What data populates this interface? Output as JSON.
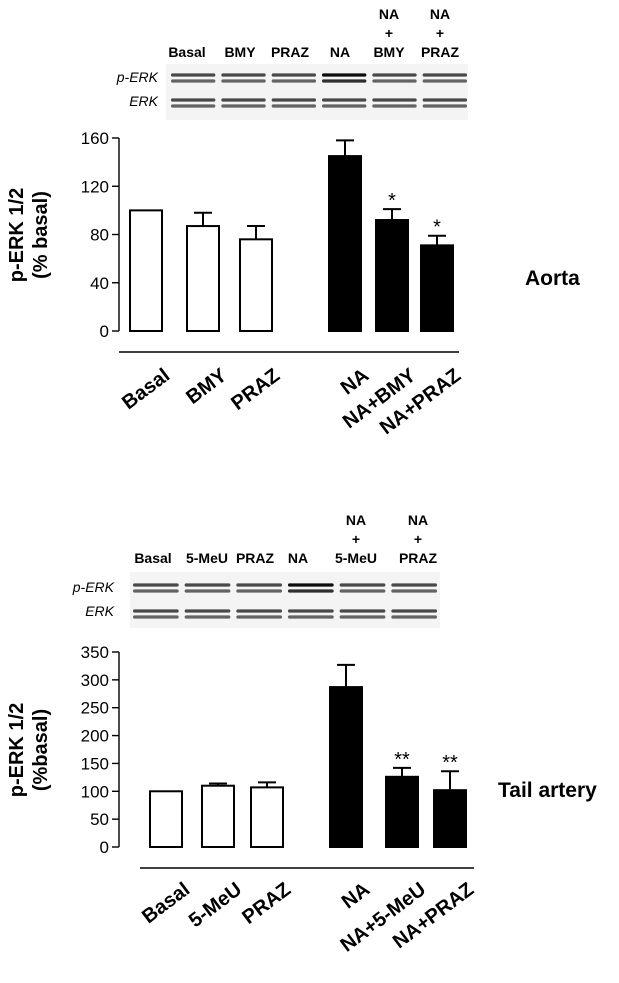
{
  "chart_data": [
    {
      "type": "bar",
      "panel_label": "Aorta",
      "blot": {
        "lanes": [
          "Basal",
          "BMY",
          "PRAZ",
          "NA",
          [
            "NA",
            "+",
            "BMY"
          ],
          [
            "NA",
            "+",
            "PRAZ"
          ]
        ],
        "rows": [
          "p-ERK",
          "ERK"
        ]
      },
      "categories": [
        "Basal",
        "BMY",
        "PRAZ",
        "NA",
        "NA+BMY",
        "NA+PRAZ"
      ],
      "values": [
        100,
        87,
        76,
        145,
        92,
        71
      ],
      "errors": [
        0,
        11,
        11,
        13,
        9,
        8
      ],
      "fills": [
        "white",
        "white",
        "white",
        "black",
        "black",
        "black"
      ],
      "significance": [
        "",
        "",
        "",
        "",
        "*",
        "*"
      ],
      "ylabel": [
        "p-ERK 1/2",
        "(% basal)"
      ],
      "ylim": [
        0,
        160
      ],
      "yticks": [
        0,
        40,
        80,
        120,
        160
      ],
      "grid": false
    },
    {
      "type": "bar",
      "panel_label": "Tail artery",
      "blot": {
        "lanes": [
          "Basal",
          "5-MeU",
          "PRAZ",
          "NA",
          [
            "NA",
            "+",
            "5-MeU"
          ],
          [
            "NA",
            "+",
            "PRAZ"
          ]
        ],
        "rows": [
          "p-ERK",
          "ERK"
        ]
      },
      "categories": [
        "Basal",
        "5-MeU",
        "PRAZ",
        "NA",
        "NA+5-MeU",
        "NA+PRAZ"
      ],
      "values": [
        100,
        110,
        107,
        287,
        126,
        102
      ],
      "errors": [
        0,
        4,
        9,
        40,
        16,
        34
      ],
      "fills": [
        "white",
        "white",
        "white",
        "black",
        "black",
        "black"
      ],
      "significance": [
        "",
        "",
        "",
        "",
        "**",
        "**"
      ],
      "ylabel": [
        "p-ERK 1/2",
        "(%basal)"
      ],
      "ylim": [
        0,
        350
      ],
      "yticks": [
        0,
        50,
        100,
        150,
        200,
        250,
        300,
        350
      ],
      "grid": false
    }
  ]
}
